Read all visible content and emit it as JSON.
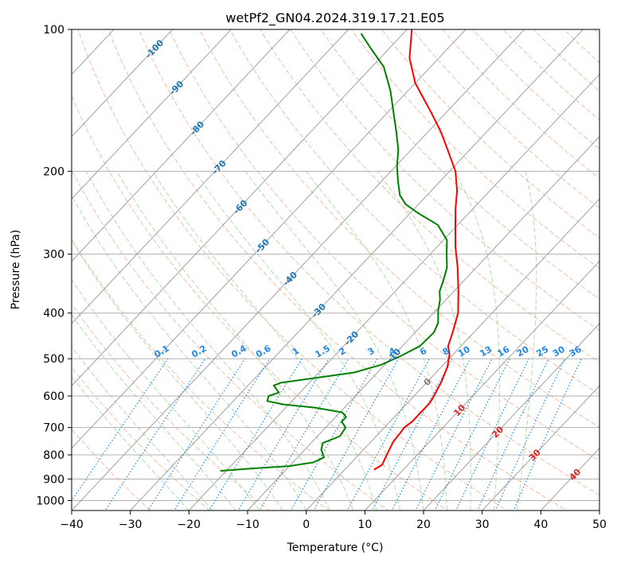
{
  "chart_data": {
    "type": "line",
    "title": "wetPf2_GN04.2024.319.17.21.E05",
    "xlabel": "Temperature (°C)",
    "ylabel": "Pressure (hPa)",
    "xlim": [
      -40,
      50
    ],
    "ylim": [
      1050,
      100
    ],
    "y_scale": "log",
    "grid": true,
    "x_ticks": [
      "−40",
      "−30",
      "−20",
      "−10",
      "0",
      "10",
      "20",
      "30",
      "40",
      "50"
    ],
    "y_ticks": [
      "100",
      "200",
      "300",
      "400",
      "500",
      "600",
      "700",
      "800",
      "900",
      "1000"
    ],
    "colors": {
      "temperature": "#ff0000",
      "dewpoint": "#008000",
      "skew_isotherms": "#a0a0a0",
      "dry_adiabats": "#f4a582",
      "moist_adiabats": "#a6d6a0",
      "mixing_ratio": "#1e88e5",
      "isotherm_labels": "#1f77b4",
      "freezing_label": "#7f7f7f",
      "warm_labels": "#d62728"
    },
    "series": [
      {
        "points": [
          {
            "p": 860,
            "t": 5.0
          },
          {
            "p": 840,
            "t": 5.6
          },
          {
            "p": 810,
            "t": 5.0
          },
          {
            "p": 780,
            "t": 4.4
          },
          {
            "p": 750,
            "t": 3.8
          },
          {
            "p": 720,
            "t": 3.6
          },
          {
            "p": 700,
            "t": 3.4
          },
          {
            "p": 680,
            "t": 3.8
          },
          {
            "p": 650,
            "t": 3.8
          },
          {
            "p": 620,
            "t": 3.8
          },
          {
            "p": 600,
            "t": 3.4
          },
          {
            "p": 560,
            "t": 2.4
          },
          {
            "p": 520,
            "t": 1.0
          },
          {
            "p": 490,
            "t": -0.6
          },
          {
            "p": 470,
            "t": -2.2
          },
          {
            "p": 440,
            "t": -3.6
          },
          {
            "p": 400,
            "t": -5.8
          },
          {
            "p": 360,
            "t": -9.2
          },
          {
            "p": 320,
            "t": -13.2
          },
          {
            "p": 290,
            "t": -16.8
          },
          {
            "p": 260,
            "t": -20.4
          },
          {
            "p": 240,
            "t": -23.0
          },
          {
            "p": 220,
            "t": -25.6
          },
          {
            "p": 200,
            "t": -29.0
          },
          {
            "p": 180,
            "t": -33.8
          },
          {
            "p": 165,
            "t": -37.8
          },
          {
            "p": 150,
            "t": -42.6
          },
          {
            "p": 130,
            "t": -50.0
          },
          {
            "p": 115,
            "t": -55.0
          },
          {
            "p": 100,
            "t": -59.2
          }
        ]
      },
      {
        "points": [
          {
            "p": 865,
            "t": -21.0
          },
          {
            "p": 855,
            "t": -16.0
          },
          {
            "p": 845,
            "t": -10.0
          },
          {
            "p": 830,
            "t": -6.5
          },
          {
            "p": 810,
            "t": -5.5
          },
          {
            "p": 780,
            "t": -7.2
          },
          {
            "p": 755,
            "t": -8.0
          },
          {
            "p": 730,
            "t": -6.2
          },
          {
            "p": 700,
            "t": -6.6
          },
          {
            "p": 680,
            "t": -8.2
          },
          {
            "p": 665,
            "t": -8.2
          },
          {
            "p": 650,
            "t": -9.6
          },
          {
            "p": 635,
            "t": -15.0
          },
          {
            "p": 625,
            "t": -21.0
          },
          {
            "p": 615,
            "t": -24.2
          },
          {
            "p": 600,
            "t": -24.8
          },
          {
            "p": 590,
            "t": -23.6
          },
          {
            "p": 580,
            "t": -24.6
          },
          {
            "p": 570,
            "t": -25.6
          },
          {
            "p": 562,
            "t": -24.8
          },
          {
            "p": 550,
            "t": -20.0
          },
          {
            "p": 535,
            "t": -14.0
          },
          {
            "p": 515,
            "t": -10.6
          },
          {
            "p": 495,
            "t": -8.8
          },
          {
            "p": 470,
            "t": -7.0
          },
          {
            "p": 440,
            "t": -6.8
          },
          {
            "p": 420,
            "t": -7.6
          },
          {
            "p": 395,
            "t": -9.6
          },
          {
            "p": 375,
            "t": -11.0
          },
          {
            "p": 360,
            "t": -12.4
          },
          {
            "p": 340,
            "t": -13.6
          },
          {
            "p": 320,
            "t": -15.0
          },
          {
            "p": 300,
            "t": -17.2
          },
          {
            "p": 280,
            "t": -19.4
          },
          {
            "p": 260,
            "t": -23.4
          },
          {
            "p": 245,
            "t": -28.8
          },
          {
            "p": 235,
            "t": -32.2
          },
          {
            "p": 225,
            "t": -34.6
          },
          {
            "p": 210,
            "t": -37.2
          },
          {
            "p": 195,
            "t": -39.8
          },
          {
            "p": 180,
            "t": -42.2
          },
          {
            "p": 165,
            "t": -45.4
          },
          {
            "p": 150,
            "t": -49.0
          },
          {
            "p": 135,
            "t": -53.0
          },
          {
            "p": 120,
            "t": -58.0
          },
          {
            "p": 110,
            "t": -63.0
          },
          {
            "p": 102,
            "t": -67.2
          }
        ]
      }
    ],
    "isotherm_labels": [
      {
        "t": -100,
        "p": 110,
        "text": "-100"
      },
      {
        "t": -90,
        "p": 133,
        "text": "-90"
      },
      {
        "t": -80,
        "p": 162,
        "text": "-80"
      },
      {
        "t": -70,
        "p": 196,
        "text": "-70"
      },
      {
        "t": -60,
        "p": 238,
        "text": "-60"
      },
      {
        "t": -50,
        "p": 288,
        "text": "-50"
      },
      {
        "t": -40,
        "p": 338,
        "text": "-40"
      },
      {
        "t": -30,
        "p": 395,
        "text": "-30"
      },
      {
        "t": -20,
        "p": 452,
        "text": "-20"
      },
      {
        "t": -10,
        "p": 492,
        "text": "-10"
      },
      {
        "t": 0,
        "p": 560,
        "text": "0"
      },
      {
        "t": 10,
        "p": 643,
        "text": "10"
      },
      {
        "t": 20,
        "p": 715,
        "text": "20"
      },
      {
        "t": 30,
        "p": 800,
        "text": "30"
      },
      {
        "t": 40,
        "p": 880,
        "text": "40"
      }
    ],
    "mixing_ratio_labels": [
      "0.1",
      "0.2",
      "0.4",
      "0.6",
      "1",
      "1.5",
      "2",
      "3",
      "4",
      "6",
      "8",
      "10",
      "13",
      "16",
      "20",
      "25",
      "30",
      "36"
    ]
  }
}
